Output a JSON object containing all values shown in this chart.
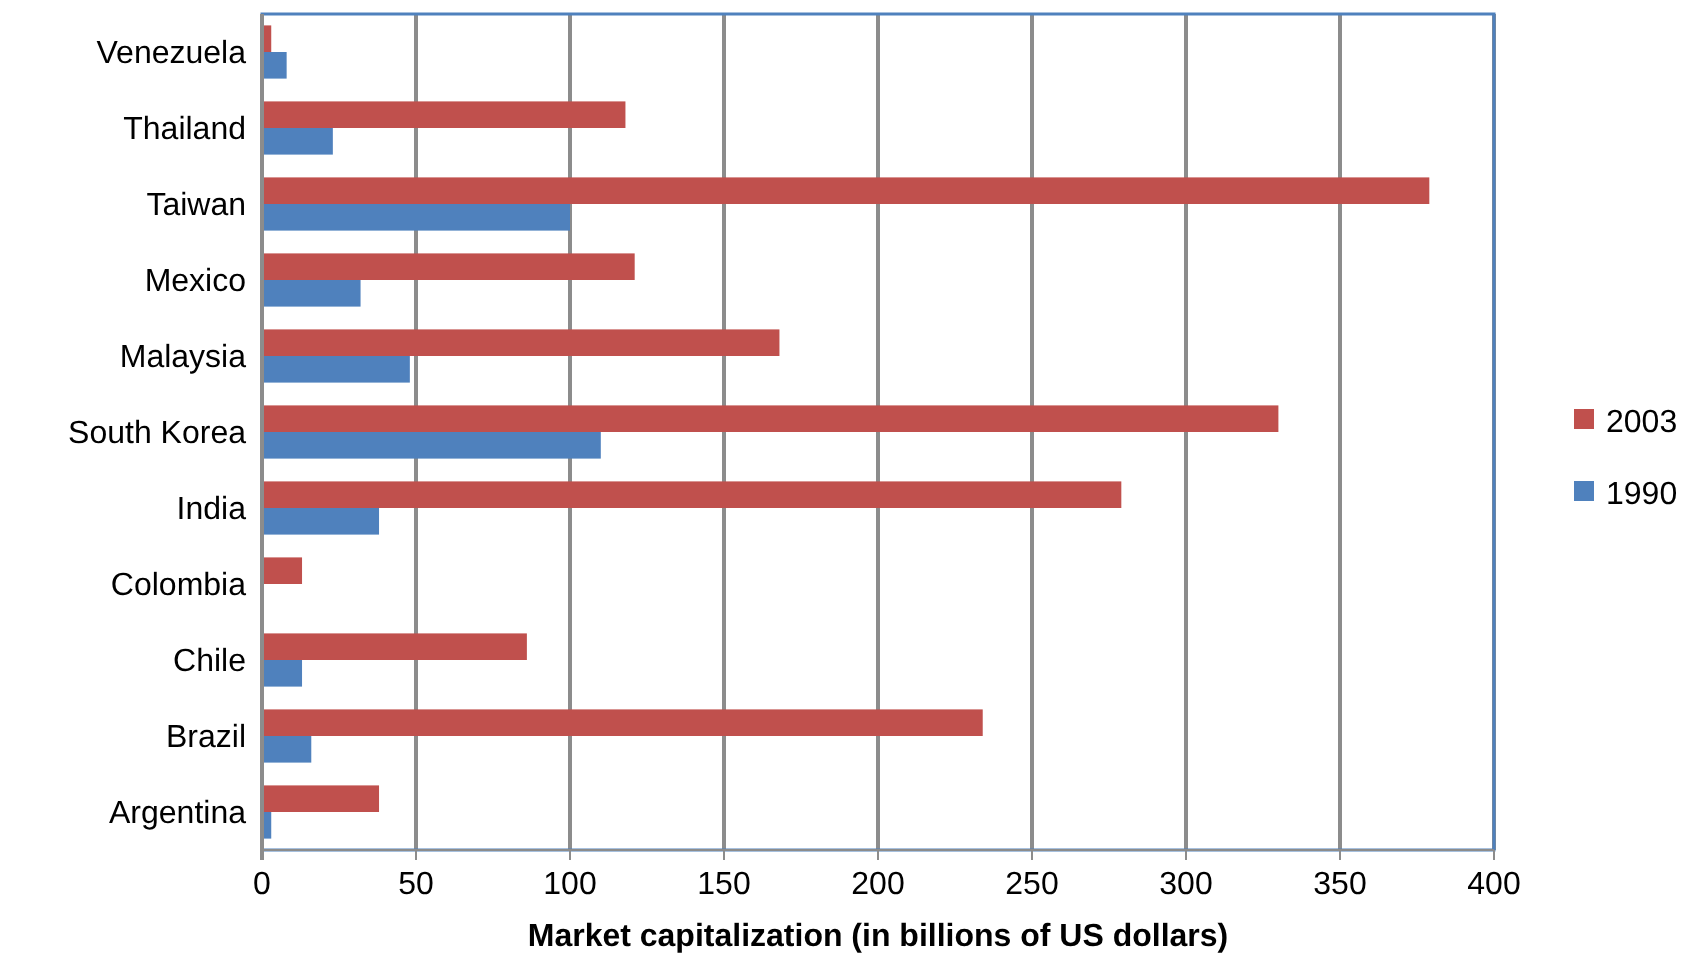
{
  "chart_data": {
    "type": "bar",
    "orientation": "horizontal",
    "xlabel": "Market capitalization (in billions of US dollars)",
    "categories": [
      "Venezuela",
      "Thailand",
      "Taiwan",
      "Mexico",
      "Malaysia",
      "South Korea",
      "India",
      "Colombia",
      "Chile",
      "Brazil",
      "Argentina"
    ],
    "series": [
      {
        "name": "2003",
        "color": "#c0504d",
        "values": [
          3,
          118,
          379,
          121,
          168,
          330,
          279,
          13,
          86,
          234,
          38
        ]
      },
      {
        "name": "1990",
        "color": "#4f81bd",
        "values": [
          8,
          23,
          100,
          32,
          48,
          110,
          38,
          0.5,
          13,
          16,
          3
        ]
      }
    ],
    "xlim": [
      0,
      400
    ],
    "xticks": [
      0,
      50,
      100,
      150,
      200,
      250,
      300,
      350,
      400
    ],
    "grid": "x",
    "legend": "right"
  }
}
